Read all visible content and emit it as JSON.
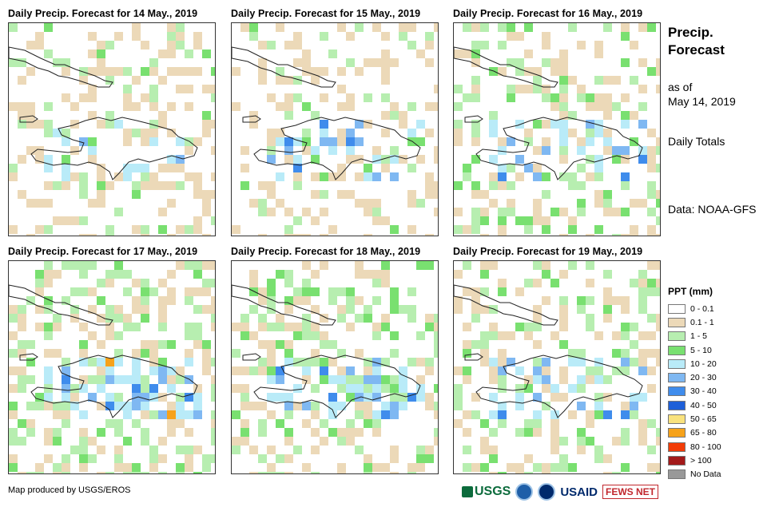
{
  "panels": [
    {
      "title": "Daily Precip. Forecast for 14 May., 2019",
      "seed": 3,
      "intensity": 0.6
    },
    {
      "title": "Daily Precip. Forecast for 15 May., 2019",
      "seed": 7,
      "intensity": 0.5
    },
    {
      "title": "Daily Precip. Forecast for 16 May., 2019",
      "seed": 11,
      "intensity": 1.0
    },
    {
      "title": "Daily Precip. Forecast for 17 May., 2019",
      "seed": 19,
      "intensity": 1.5
    },
    {
      "title": "Daily Precip. Forecast for 18 May., 2019",
      "seed": 23,
      "intensity": 1.2
    },
    {
      "title": "Daily Precip. Forecast for 19 May., 2019",
      "seed": 31,
      "intensity": 1.1
    }
  ],
  "sidebar": {
    "title": "Precip. Forecast",
    "as_of_label": "as of",
    "as_of_date": "May 14, 2019",
    "totals": "Daily Totals",
    "data_source": "Data: NOAA-GFS"
  },
  "legend": {
    "title": "PPT (mm)",
    "items": [
      {
        "label": "0 - 0.1",
        "color": "#ffffff"
      },
      {
        "label": "0.1 - 1",
        "color": "#ecd9b8"
      },
      {
        "label": "1 - 5",
        "color": "#b7eeb0"
      },
      {
        "label": "5 - 10",
        "color": "#79e070"
      },
      {
        "label": "10 - 20",
        "color": "#b9ebf8"
      },
      {
        "label": "20 - 30",
        "color": "#7fb8f2"
      },
      {
        "label": "30 - 40",
        "color": "#3f8cec"
      },
      {
        "label": "40 - 50",
        "color": "#1e5fd8"
      },
      {
        "label": "50 - 65",
        "color": "#f9e27d"
      },
      {
        "label": "65 - 80",
        "color": "#f6a21a"
      },
      {
        "label": "80 - 100",
        "color": "#f23c07"
      },
      {
        "label": "> 100",
        "color": "#a31a1a"
      },
      {
        "label": "No Data",
        "color": "#999999"
      }
    ]
  },
  "credit": "Map produced by USGS/EROS",
  "logos": {
    "usgs": "USGS",
    "usaid": "USAID",
    "fews": "FEWS NET"
  }
}
